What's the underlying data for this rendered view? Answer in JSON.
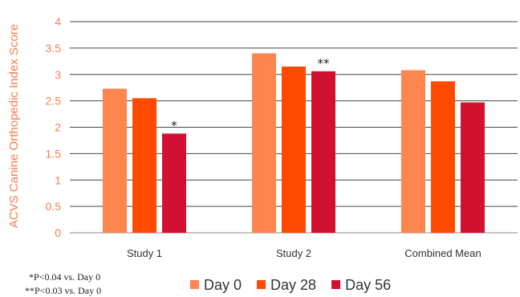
{
  "chart_data": {
    "type": "bar",
    "title": "",
    "xlabel": "",
    "ylabel": "ACVS Canine Orthopedic Index Score",
    "ylim": [
      0,
      4
    ],
    "yticks": [
      "0",
      "0.5",
      "1",
      "1.5",
      "2",
      "2.5",
      "3",
      "3.5",
      "4"
    ],
    "categories": [
      "Study 1",
      "Study 2",
      "Combined Mean"
    ],
    "series": [
      {
        "name": "Day 0",
        "color": "#ff8550",
        "values": [
          2.73,
          3.4,
          3.08
        ]
      },
      {
        "name": "Day 28",
        "color": "#ff4a00",
        "values": [
          2.55,
          3.15,
          2.87
        ]
      },
      {
        "name": "Day 56",
        "color": "#d21030",
        "values": [
          1.88,
          3.06,
          2.47
        ]
      }
    ],
    "annotations": [
      {
        "category": 0,
        "series": 2,
        "text": "*"
      },
      {
        "category": 1,
        "series": 2,
        "text": "**"
      }
    ],
    "footnotes": [
      "*P<0.04 vs. Day 0",
      "**P<0.03 vs. Day 0"
    ],
    "legend": "bottom",
    "grid": true
  }
}
